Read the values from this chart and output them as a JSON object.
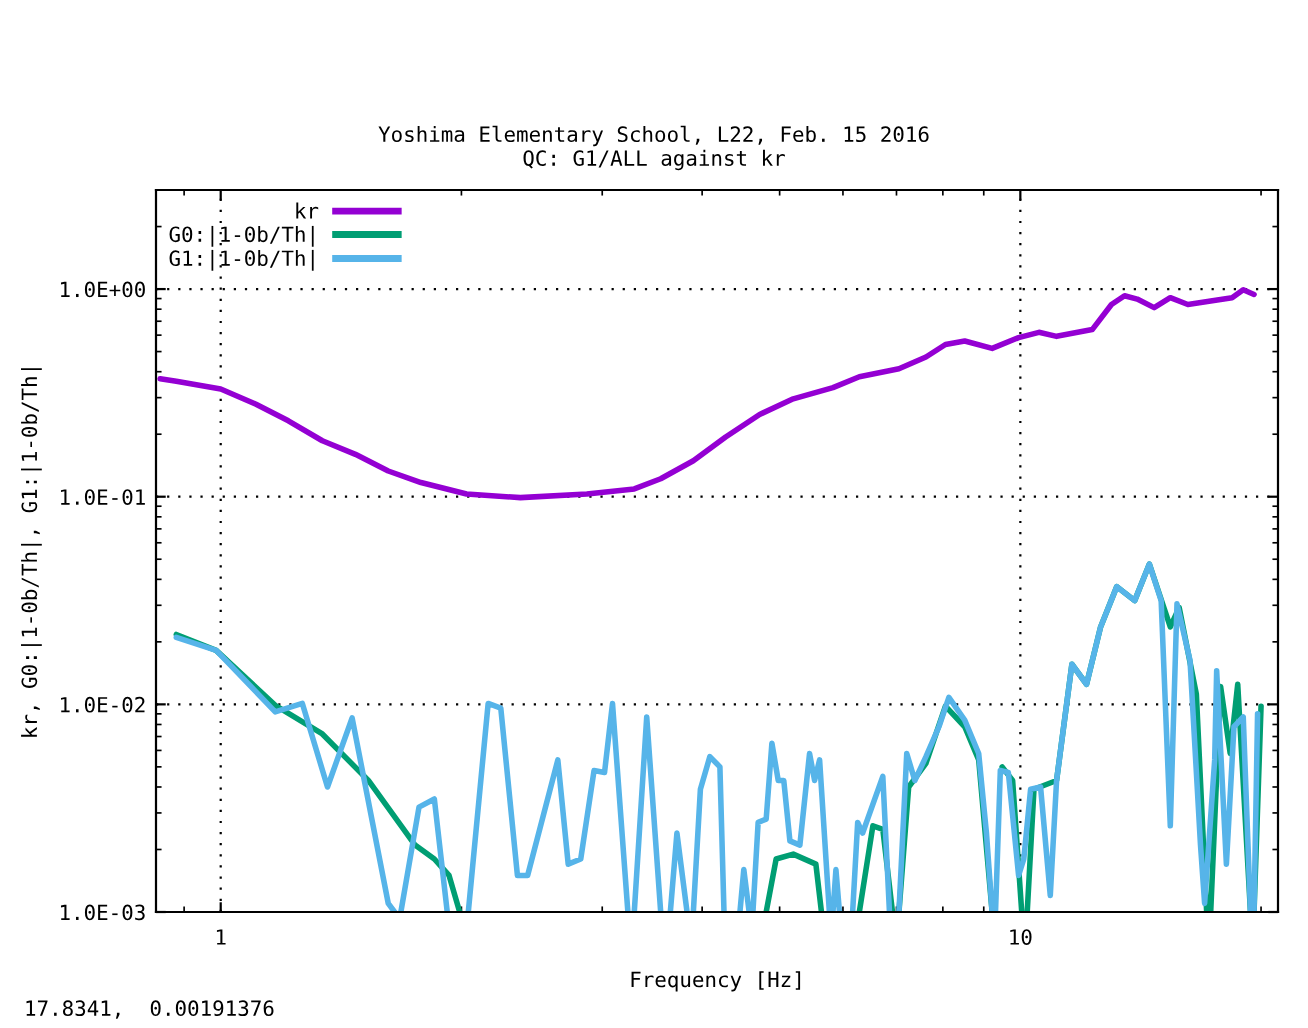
{
  "chart_data": {
    "type": "line",
    "title": "Yoshima Elementary School, L22, Feb. 15 2016",
    "subtitle": "QC: G1/ALL against kr",
    "xlabel": "Frequency [Hz]",
    "ylabel": "kr, G0:|1-0b/Th|, G1:|1-0b/Th|",
    "log": "xy",
    "grid": true,
    "legend": "top left",
    "line_style": "solid",
    "marker": "none",
    "xlim": [
      0.83,
      21
    ],
    "xticks": [
      1,
      10
    ],
    "ylim": [
      0.001,
      3
    ],
    "yticks": [
      {
        "value": 0.001,
        "label": "1.0E-03"
      },
      {
        "value": 0.01,
        "label": "1.0E-02"
      },
      {
        "value": 0.1,
        "label": "1.0E-01"
      },
      {
        "value": 1,
        "label": "1.0E+00"
      }
    ],
    "annotations": [
      "17.8341,  0.00191376"
    ],
    "series": [
      {
        "name": "kr",
        "color": "#9400d3",
        "x": [
          0.84,
          0.88,
          1.0,
          1.107,
          1.215,
          1.34,
          1.474,
          1.62,
          1.78,
          2.03,
          2.37,
          2.87,
          3.29,
          3.55,
          3.9,
          4.28,
          4.72,
          5.2,
          5.83,
          6.29,
          7.05,
          7.62,
          8.06,
          8.52,
          9.22,
          9.95,
          10.55,
          11.1,
          12.3,
          13.0,
          13.5,
          14.0,
          14.7,
          15.4,
          16.2,
          17.3,
          18.4,
          19.0,
          19.6
        ],
        "values": [
          0.37,
          0.36,
          0.33,
          0.279,
          0.232,
          0.186,
          0.16,
          0.133,
          0.117,
          0.103,
          0.099,
          0.103,
          0.109,
          0.122,
          0.149,
          0.194,
          0.249,
          0.296,
          0.335,
          0.378,
          0.413,
          0.471,
          0.541,
          0.562,
          0.518,
          0.584,
          0.619,
          0.592,
          0.638,
          0.843,
          0.929,
          0.895,
          0.814,
          0.909,
          0.843,
          0.876,
          0.909,
          0.993,
          0.942
        ]
      },
      {
        "name": "G0:|1-0b/Th|",
        "color": "#009e73",
        "x": [
          0.88,
          0.987,
          1.17,
          1.34,
          1.53,
          1.75,
          1.85,
          1.93,
          1.99,
          3.0,
          4.81,
          4.95,
          5.2,
          5.55,
          5.64,
          6.0,
          6.29,
          6.54,
          6.73,
          6.92,
          7.0,
          7.05,
          7.25,
          7.62,
          8.06,
          8.52,
          8.87,
          9.22,
          9.3,
          9.49,
          9.78,
          10.04,
          10.1,
          10.2,
          10.4,
          11.1,
          11.6,
          12.1,
          12.6,
          13.2,
          13.9,
          14.5,
          15.4,
          15.8,
          16.6,
          17.1,
          17.2,
          17.3,
          17.8,
          18.3,
          18.7,
          19.4,
          19.5,
          19.6,
          20.0
        ],
        "values": [
          0.0217,
          0.0182,
          0.0099,
          0.0072,
          0.0043,
          0.0021,
          0.0018,
          0.0015,
          0.001,
          null,
          0.001,
          0.0018,
          0.0019,
          0.0017,
          0.001,
          null,
          0.001,
          0.0026,
          0.0025,
          0.001,
          null,
          0.001,
          0.004,
          0.0052,
          0.0098,
          0.0078,
          0.0054,
          0.001,
          null,
          0.005,
          0.0043,
          0.001,
          null,
          0.001,
          0.0039,
          0.0043,
          0.0156,
          0.0125,
          0.0236,
          0.0369,
          0.0316,
          0.0474,
          0.0236,
          0.0293,
          0.0112,
          0.001,
          null,
          0.001,
          0.0122,
          0.0058,
          0.0125,
          0.001,
          null,
          0.001,
          0.0098
        ]
      },
      {
        "name": "G1:|1-0b/Th|",
        "color": "#56b4e9",
        "x": [
          0.88,
          0.987,
          1.17,
          1.265,
          1.36,
          1.46,
          1.62,
          1.65,
          1.66,
          1.68,
          1.77,
          1.85,
          1.92,
          1.98,
          2.04,
          2.16,
          2.24,
          2.35,
          2.42,
          2.64,
          2.72,
          2.82,
          2.93,
          3.02,
          3.09,
          3.23,
          3.26,
          3.29,
          3.41,
          3.55,
          3.6,
          3.65,
          3.72,
          3.83,
          3.86,
          3.9,
          3.98,
          4.09,
          4.21,
          4.26,
          4.36,
          4.46,
          4.51,
          4.58,
          4.6,
          4.63,
          4.7,
          4.81,
          4.89,
          4.98,
          5.06,
          5.15,
          5.3,
          5.45,
          5.53,
          5.61,
          5.77,
          5.8,
          5.83,
          5.88,
          5.94,
          6.05,
          6.17,
          6.26,
          6.35,
          6.73,
          6.86,
          6.95,
          7.05,
          7.21,
          7.38,
          7.62,
          7.91,
          8.14,
          8.52,
          8.87,
          9.07,
          9.22,
          9.26,
          9.31,
          9.44,
          9.66,
          9.95,
          10.1,
          10.3,
          10.6,
          10.9,
          11.1,
          11.6,
          12.1,
          12.6,
          13.2,
          13.9,
          14.5,
          15.0,
          15.4,
          15.7,
          16.3,
          16.8,
          17.0,
          17.5,
          17.6,
          18.1,
          18.5,
          19.0,
          19.4,
          19.5,
          19.6,
          19.8
        ],
        "values": [
          0.021,
          0.0182,
          0.0092,
          0.0101,
          0.004,
          0.0086,
          0.0011,
          0.001,
          null,
          0.001,
          0.0032,
          0.0035,
          0.001,
          null,
          0.001,
          0.0101,
          0.0096,
          0.0015,
          0.0015,
          0.0054,
          0.0017,
          0.0018,
          0.0048,
          0.0047,
          0.0101,
          0.001,
          null,
          0.001,
          0.0087,
          0.001,
          null,
          0.001,
          0.0024,
          0.001,
          null,
          0.001,
          0.0039,
          0.0056,
          0.005,
          0.001,
          null,
          0.001,
          0.0016,
          0.001,
          null,
          0.001,
          0.0027,
          0.0028,
          0.0065,
          0.0043,
          0.0043,
          0.0022,
          0.0021,
          0.0058,
          0.0043,
          0.0054,
          0.001,
          null,
          0.001,
          0.0016,
          0.001,
          null,
          0.001,
          0.0027,
          0.0024,
          0.0045,
          0.001,
          null,
          0.001,
          0.0058,
          0.0043,
          0.0056,
          0.0078,
          0.0108,
          0.0084,
          0.0058,
          0.0024,
          0.001,
          null,
          0.001,
          0.0048,
          0.0047,
          0.0015,
          0.0018,
          0.0039,
          0.004,
          0.0012,
          0.0043,
          0.0156,
          0.0125,
          0.0236,
          0.0369,
          0.0316,
          0.0474,
          0.0316,
          0.0026,
          0.0305,
          0.0163,
          0.0021,
          0.0011,
          0.0054,
          0.0145,
          0.0017,
          0.0078,
          0.0087,
          0.001,
          null,
          0.001,
          0.009
        ]
      }
    ]
  }
}
